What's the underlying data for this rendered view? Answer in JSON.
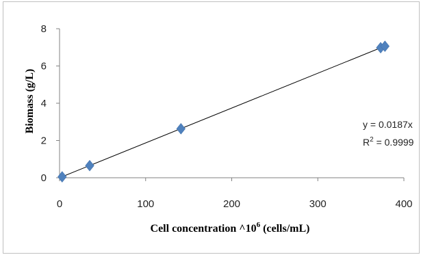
{
  "chart_data": {
    "type": "scatter",
    "xlabel": "Cell concentration ^10",
    "xlabel_superscript": "6",
    "xlabel_unit": " (cells/mL)",
    "ylabel": "Biomass (g/L)",
    "xlim": [
      0,
      400
    ],
    "ylim": [
      0,
      8
    ],
    "x_ticks": [
      0,
      100,
      200,
      300,
      400
    ],
    "y_ticks": [
      0,
      2,
      4,
      6,
      8
    ],
    "grid": false,
    "series": [
      {
        "color": "#4f81bd",
        "marker": "diamond",
        "points": [
          {
            "x": 3,
            "y": 0.05
          },
          {
            "x": 35,
            "y": 0.65
          },
          {
            "x": 141,
            "y": 2.63
          },
          {
            "x": 373,
            "y": 6.98
          },
          {
            "x": 378,
            "y": 7.06
          }
        ]
      }
    ],
    "trendline": {
      "type": "linear",
      "slope": 0.0187,
      "intercept": 0,
      "x_range": [
        0,
        378
      ],
      "color": "#000000"
    },
    "annotations": {
      "equation": "y = 0.0187x",
      "r2_prefix": "R",
      "r2_sup": "2",
      "r2_suffix": " = 0.9999"
    }
  }
}
